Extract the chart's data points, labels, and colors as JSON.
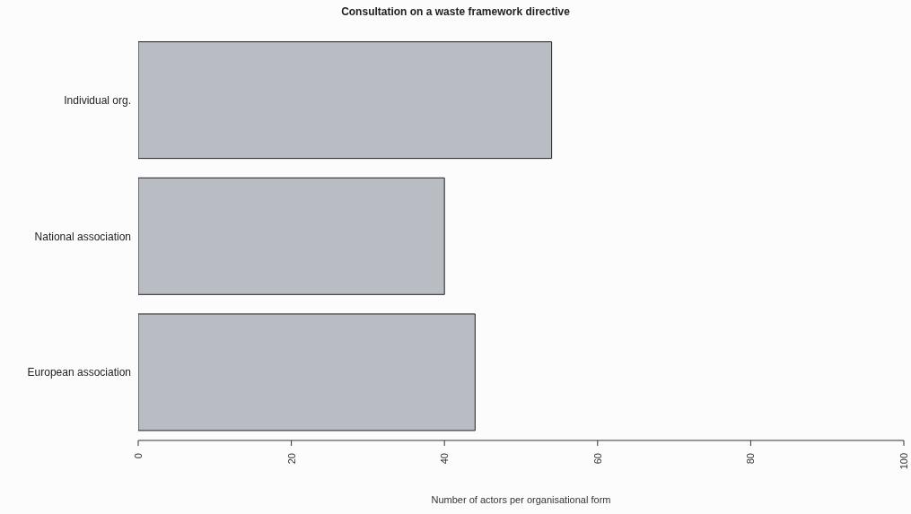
{
  "chart_data": {
    "type": "bar",
    "orientation": "horizontal",
    "title": "Consultation on a waste framework directive",
    "xlabel": "Number of actors per organisational form",
    "categories": [
      "Individual org.",
      "National association",
      "European association"
    ],
    "values": [
      54,
      40,
      44
    ],
    "color": "#b9bcc3",
    "xlim": [
      0,
      100
    ],
    "xticks": [
      0,
      20,
      40,
      60,
      80,
      100
    ],
    "grid": false,
    "legend": false
  }
}
